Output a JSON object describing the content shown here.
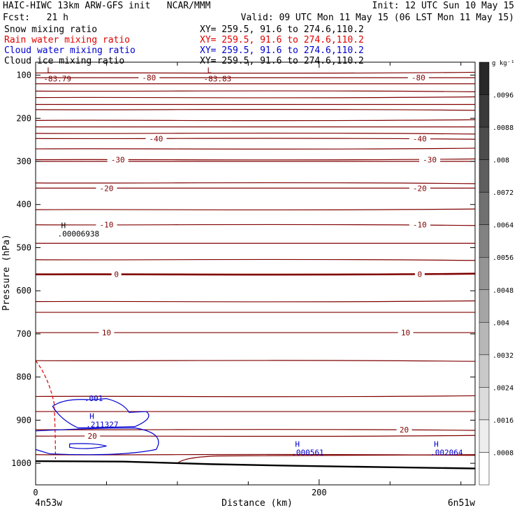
{
  "header": {
    "line1_left": "HAIC-HIWC 13km ARW-GFS init   NCAR/MMM",
    "line1_right": "Init: 12 UTC Sun 10 May 15",
    "line2_left": "Fcst:   21 h",
    "line2_right": "Valid: 09 UTC Mon 11 May 15 (06 LST Mon 11 May 15)",
    "fields": [
      {
        "label": "Snow mixing ratio",
        "xy": "XY= 259.5, 91.6 to 274.6,110.2",
        "color": "#000000"
      },
      {
        "label": "Rain water mixing ratio",
        "xy": "XY= 259.5, 91.6 to 274.6,110.2",
        "color": "#e00000"
      },
      {
        "label": "Cloud water mixing ratio",
        "xy": "XY= 259.5, 91.6 to 274.6,110.2",
        "color": "#0000d0"
      },
      {
        "label": "Cloud ice mixing ratio",
        "xy": "XY= 259.5, 91.6 to 274.6,110.2",
        "color": "#000000"
      }
    ]
  },
  "chart_data": {
    "type": "contour",
    "xlabel": "Distance (km)",
    "ylabel": "Pressure (hPa)",
    "xlim": [
      0,
      310
    ],
    "ylim": [
      1050,
      70
    ],
    "x_ticks": [
      0,
      200
    ],
    "x_minor_ticks": [
      50,
      100,
      150,
      250,
      300
    ],
    "y_ticks": [
      100,
      200,
      300,
      400,
      500,
      600,
      700,
      800,
      900,
      1000
    ],
    "x_endpoints": {
      "left": "4n53w",
      "right": "6n51w"
    },
    "colorbar": {
      "unit": "g kg⁻¹",
      "ticks": [
        ".0096",
        ".0088",
        ".008",
        ".0072",
        ".0064",
        ".0056",
        ".0048",
        ".004",
        ".0032",
        ".0024",
        ".0016",
        ".0008"
      ]
    },
    "temperature_contours": {
      "color": "#800000",
      "labeled": [
        {
          "value": "-80",
          "p": 106,
          "x": [
            80,
            270
          ]
        },
        {
          "value": "-40",
          "p": 247,
          "x": [
            85,
            271
          ]
        },
        {
          "value": "-30",
          "p": 296,
          "x": [
            58,
            278
          ]
        },
        {
          "value": "-20",
          "p": 362,
          "x": [
            50,
            271
          ]
        },
        {
          "value": "-10",
          "p": 447,
          "x": [
            50,
            271
          ]
        },
        {
          "value": "0",
          "p": 562,
          "x": [
            57,
            271
          ],
          "bold": true
        },
        {
          "value": "10",
          "p": 697,
          "x": [
            50,
            261
          ]
        },
        {
          "value": "20",
          "p": 922,
          "x": [
            260
          ]
        },
        {
          "value": "20",
          "p": 937,
          "x": [
            40
          ]
        }
      ],
      "unlabeled_p": [
        95,
        120,
        137,
        152,
        168,
        180,
        205,
        220,
        235,
        271,
        300,
        350,
        412,
        490,
        528,
        625,
        650,
        762,
        845,
        880,
        980
      ]
    },
    "annotations": [
      {
        "kind": "L",
        "value": "-83.79",
        "x": 8,
        "p": 95
      },
      {
        "kind": "L",
        "value": "-83.83",
        "x": 121,
        "p": 95
      },
      {
        "kind": "H",
        "value": ".00006938",
        "x": 18,
        "p": 455
      },
      {
        "kind": "H",
        "value": ".211327",
        "x": 38,
        "p": 897
      },
      {
        "kind": "H",
        "value": ".000561",
        "x": 183,
        "p": 962
      },
      {
        "kind": "H",
        "value": ".002064",
        "x": 281,
        "p": 962
      }
    ],
    "cloud_water_contour": {
      "value": ".001",
      "color": "#0000d0"
    },
    "rain_contour": {
      "color": "#e00000",
      "style": "dashed"
    },
    "terrain_p": [
      995,
      996,
      1002,
      1006,
      1009,
      1012
    ]
  }
}
